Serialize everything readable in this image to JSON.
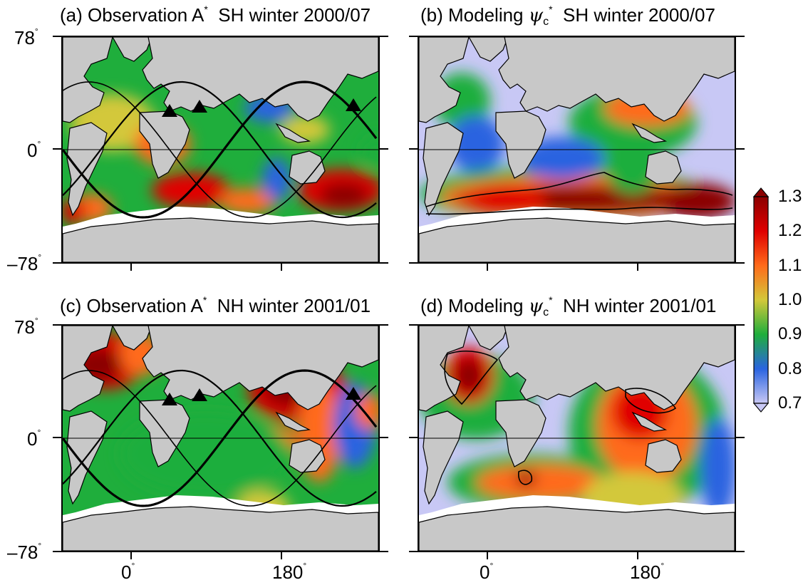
{
  "panels": [
    {
      "id": "a",
      "prefix": "(a) Observation ",
      "var": "A",
      "sub": "",
      "sup": "*",
      "suffix": "  SH winter 2000/07",
      "kind": "obs",
      "season": "SH"
    },
    {
      "id": "b",
      "prefix": "(b) Modeling ",
      "var": "ψ",
      "sub": "c",
      "sup": "*",
      "suffix": "  SH winter 2000/07",
      "kind": "model",
      "season": "SH"
    },
    {
      "id": "c",
      "prefix": "(c) Observation ",
      "var": "A",
      "sub": "",
      "sup": "*",
      "suffix": "  NH winter 2001/01",
      "kind": "obs",
      "season": "NH"
    },
    {
      "id": "d",
      "prefix": "(d) Modeling ",
      "var": "ψ",
      "sub": "c",
      "sup": "*",
      "suffix": "  NH winter 2001/01",
      "kind": "model",
      "season": "NH"
    }
  ],
  "axes": {
    "lat_labels": [
      "78",
      "0",
      "–78"
    ],
    "lon_labels": [
      "0",
      "180"
    ],
    "degree": "°"
  },
  "colorbar": {
    "ticks": [
      "1.3",
      "1.2",
      "1.1",
      "1.0",
      "0.9",
      "0.8",
      "0.7"
    ],
    "min": 0.7,
    "max": 1.3,
    "colors": [
      "#c8c8f5",
      "#2a64e0",
      "#1fae3c",
      "#d3c83a",
      "#ff6a1a",
      "#e00000",
      "#8b0000"
    ]
  },
  "colors": {
    "land": "#c8c8c8",
    "ice": "#ffffff",
    "coast": "#000000"
  },
  "stations": 3
}
